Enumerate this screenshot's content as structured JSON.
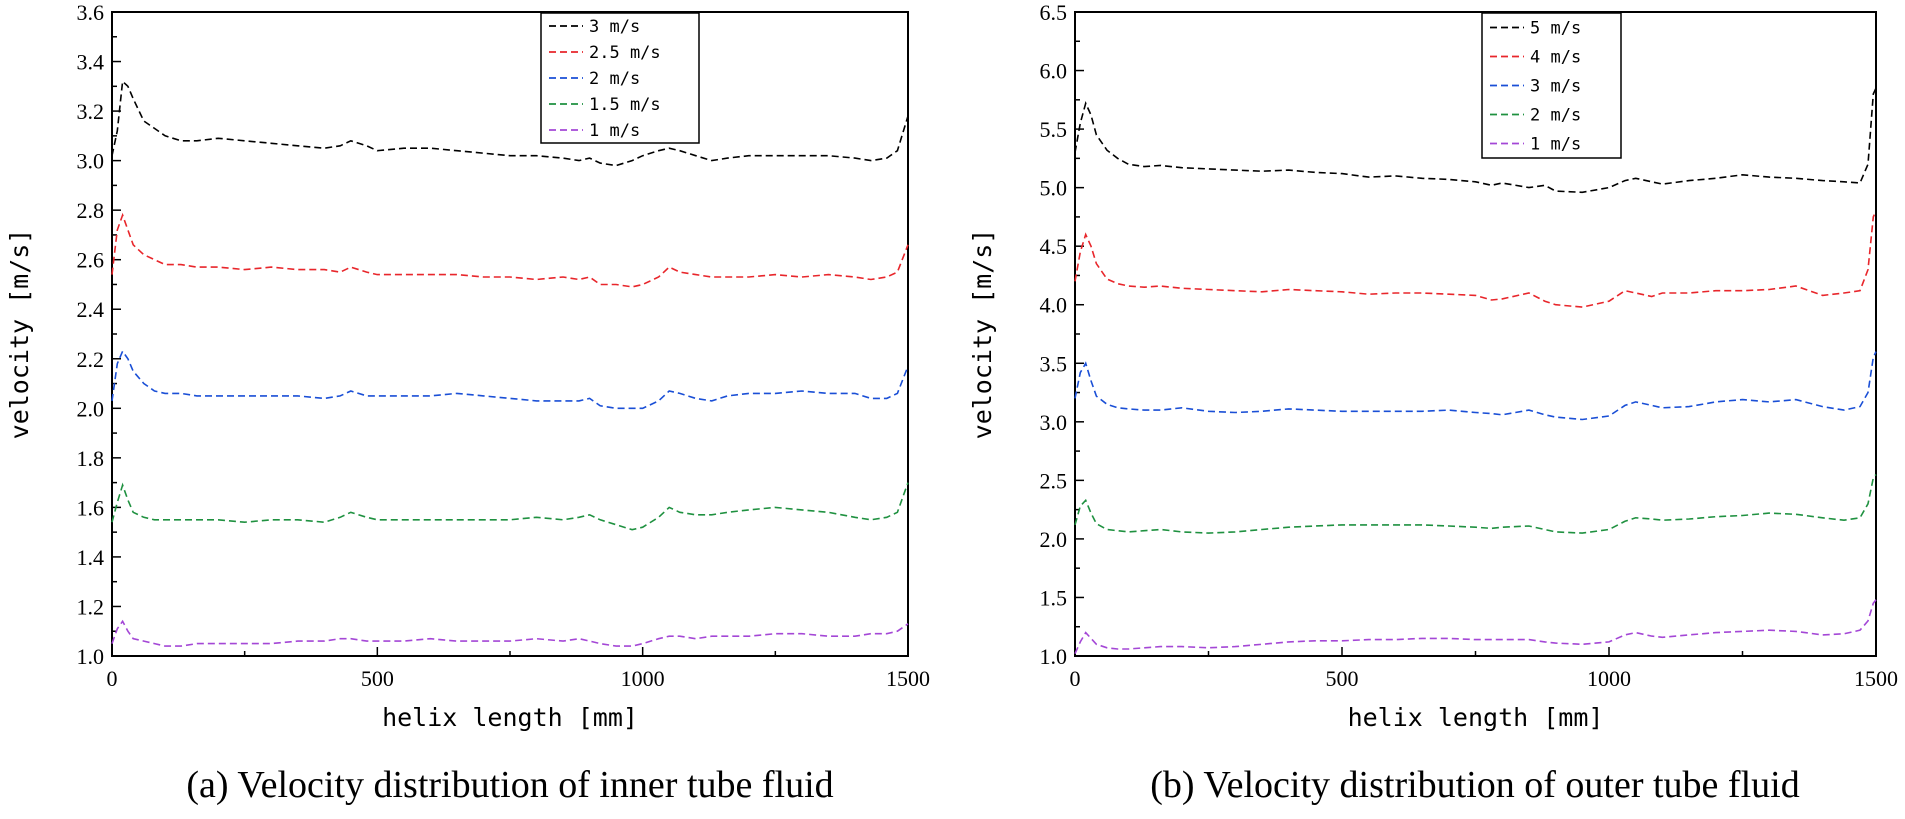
{
  "chart_data": [
    {
      "type": "line",
      "caption": "(a) Velocity distribution of inner tube fluid",
      "xlabel": "helix length [mm]",
      "ylabel": "velocity [m/s]",
      "xlim": [
        0,
        1500
      ],
      "ylim": [
        1.0,
        3.6
      ],
      "xticks": [
        "0",
        "500",
        "1000",
        "1500"
      ],
      "yticks": [
        "1.0",
        "1.2",
        "1.4",
        "1.6",
        "1.8",
        "2.0",
        "2.2",
        "2.4",
        "2.6",
        "2.8",
        "3.0",
        "3.2",
        "3.4",
        "3.6"
      ],
      "legend_position": "top-center",
      "x": [
        0,
        10,
        20,
        30,
        40,
        60,
        80,
        100,
        130,
        160,
        200,
        250,
        300,
        350,
        400,
        430,
        450,
        480,
        500,
        550,
        600,
        650,
        700,
        750,
        800,
        850,
        880,
        900,
        920,
        950,
        980,
        1000,
        1030,
        1050,
        1070,
        1100,
        1130,
        1160,
        1200,
        1250,
        1300,
        1350,
        1400,
        1430,
        1460,
        1480,
        1500
      ],
      "series": [
        {
          "name": "3 m/s",
          "color": "#000000",
          "values": [
            3.02,
            3.12,
            3.32,
            3.3,
            3.25,
            3.16,
            3.13,
            3.1,
            3.08,
            3.08,
            3.09,
            3.08,
            3.07,
            3.06,
            3.05,
            3.06,
            3.08,
            3.06,
            3.04,
            3.05,
            3.05,
            3.04,
            3.03,
            3.02,
            3.02,
            3.01,
            3.0,
            3.01,
            2.99,
            2.98,
            3.0,
            3.02,
            3.04,
            3.05,
            3.04,
            3.02,
            3.0,
            3.01,
            3.02,
            3.02,
            3.02,
            3.02,
            3.01,
            3.0,
            3.01,
            3.04,
            3.18
          ]
        },
        {
          "name": "2.5 m/s",
          "color": "#e8262b",
          "values": [
            2.54,
            2.72,
            2.78,
            2.72,
            2.66,
            2.62,
            2.6,
            2.58,
            2.58,
            2.57,
            2.57,
            2.56,
            2.57,
            2.56,
            2.56,
            2.55,
            2.57,
            2.55,
            2.54,
            2.54,
            2.54,
            2.54,
            2.53,
            2.53,
            2.52,
            2.53,
            2.52,
            2.53,
            2.5,
            2.5,
            2.49,
            2.5,
            2.53,
            2.57,
            2.55,
            2.54,
            2.53,
            2.53,
            2.53,
            2.54,
            2.53,
            2.54,
            2.53,
            2.52,
            2.53,
            2.55,
            2.66
          ]
        },
        {
          "name": "2 m/s",
          "color": "#1a4fd6",
          "values": [
            2.03,
            2.18,
            2.23,
            2.2,
            2.15,
            2.1,
            2.07,
            2.06,
            2.06,
            2.05,
            2.05,
            2.05,
            2.05,
            2.05,
            2.04,
            2.05,
            2.07,
            2.05,
            2.05,
            2.05,
            2.05,
            2.06,
            2.05,
            2.04,
            2.03,
            2.03,
            2.03,
            2.04,
            2.01,
            2.0,
            2.0,
            2.0,
            2.03,
            2.07,
            2.06,
            2.04,
            2.03,
            2.05,
            2.06,
            2.06,
            2.07,
            2.06,
            2.06,
            2.04,
            2.04,
            2.06,
            2.17
          ]
        },
        {
          "name": "1.5 m/s",
          "color": "#1f9140",
          "values": [
            1.54,
            1.62,
            1.69,
            1.63,
            1.58,
            1.56,
            1.55,
            1.55,
            1.55,
            1.55,
            1.55,
            1.54,
            1.55,
            1.55,
            1.54,
            1.56,
            1.58,
            1.56,
            1.55,
            1.55,
            1.55,
            1.55,
            1.55,
            1.55,
            1.56,
            1.55,
            1.56,
            1.57,
            1.55,
            1.53,
            1.51,
            1.52,
            1.56,
            1.6,
            1.58,
            1.57,
            1.57,
            1.58,
            1.59,
            1.6,
            1.59,
            1.58,
            1.56,
            1.55,
            1.56,
            1.58,
            1.7
          ]
        },
        {
          "name": "1 m/s",
          "color": "#a447d6",
          "values": [
            1.05,
            1.11,
            1.14,
            1.1,
            1.07,
            1.06,
            1.05,
            1.04,
            1.04,
            1.05,
            1.05,
            1.05,
            1.05,
            1.06,
            1.06,
            1.07,
            1.07,
            1.06,
            1.06,
            1.06,
            1.07,
            1.06,
            1.06,
            1.06,
            1.07,
            1.06,
            1.07,
            1.06,
            1.05,
            1.04,
            1.04,
            1.05,
            1.07,
            1.08,
            1.08,
            1.07,
            1.08,
            1.08,
            1.08,
            1.09,
            1.09,
            1.08,
            1.08,
            1.09,
            1.09,
            1.1,
            1.13
          ]
        }
      ]
    },
    {
      "type": "line",
      "caption": "(b) Velocity distribution of outer tube fluid",
      "xlabel": "helix length [mm]",
      "ylabel": "velocity [m/s]",
      "xlim": [
        0,
        1500
      ],
      "ylim": [
        1.0,
        6.5
      ],
      "xticks": [
        "0",
        "500",
        "1000",
        "1500"
      ],
      "yticks": [
        "1.0",
        "1.5",
        "2.0",
        "2.5",
        "3.0",
        "3.5",
        "4.0",
        "4.5",
        "5.0",
        "5.5",
        "6.0",
        "6.5"
      ],
      "legend_position": "top-center",
      "x": [
        0,
        10,
        20,
        30,
        40,
        60,
        80,
        100,
        130,
        160,
        200,
        250,
        300,
        350,
        400,
        450,
        500,
        550,
        600,
        650,
        700,
        750,
        780,
        800,
        850,
        880,
        900,
        950,
        1000,
        1030,
        1050,
        1080,
        1100,
        1150,
        1200,
        1250,
        1300,
        1350,
        1400,
        1440,
        1470,
        1485,
        1495,
        1500
      ],
      "series": [
        {
          "name": "5 m/s",
          "color": "#000000",
          "values": [
            5.3,
            5.55,
            5.72,
            5.62,
            5.45,
            5.32,
            5.25,
            5.2,
            5.18,
            5.19,
            5.17,
            5.16,
            5.15,
            5.14,
            5.15,
            5.13,
            5.12,
            5.09,
            5.1,
            5.08,
            5.07,
            5.05,
            5.02,
            5.04,
            5.0,
            5.02,
            4.97,
            4.96,
            5.0,
            5.06,
            5.08,
            5.05,
            5.03,
            5.06,
            5.08,
            5.11,
            5.09,
            5.08,
            5.06,
            5.05,
            5.04,
            5.2,
            5.8,
            5.85
          ]
        },
        {
          "name": "4 m/s",
          "color": "#e8262b",
          "values": [
            4.2,
            4.45,
            4.6,
            4.5,
            4.35,
            4.22,
            4.18,
            4.16,
            4.15,
            4.16,
            4.14,
            4.13,
            4.12,
            4.11,
            4.13,
            4.12,
            4.11,
            4.09,
            4.1,
            4.1,
            4.09,
            4.08,
            4.04,
            4.05,
            4.1,
            4.03,
            4.0,
            3.98,
            4.03,
            4.12,
            4.1,
            4.07,
            4.1,
            4.1,
            4.12,
            4.12,
            4.13,
            4.16,
            4.08,
            4.1,
            4.12,
            4.3,
            4.75,
            4.8
          ]
        },
        {
          "name": "3 m/s",
          "color": "#1a4fd6",
          "values": [
            3.2,
            3.42,
            3.5,
            3.35,
            3.22,
            3.15,
            3.12,
            3.11,
            3.1,
            3.1,
            3.12,
            3.09,
            3.08,
            3.09,
            3.11,
            3.1,
            3.09,
            3.09,
            3.09,
            3.09,
            3.1,
            3.08,
            3.07,
            3.06,
            3.1,
            3.06,
            3.04,
            3.02,
            3.05,
            3.14,
            3.17,
            3.14,
            3.12,
            3.13,
            3.17,
            3.19,
            3.17,
            3.19,
            3.13,
            3.1,
            3.13,
            3.25,
            3.55,
            3.6
          ]
        },
        {
          "name": "2 m/s",
          "color": "#1f9140",
          "values": [
            2.12,
            2.28,
            2.33,
            2.22,
            2.13,
            2.08,
            2.07,
            2.06,
            2.07,
            2.08,
            2.06,
            2.05,
            2.06,
            2.08,
            2.1,
            2.11,
            2.12,
            2.12,
            2.12,
            2.12,
            2.11,
            2.1,
            2.09,
            2.1,
            2.11,
            2.08,
            2.06,
            2.05,
            2.08,
            2.15,
            2.18,
            2.17,
            2.16,
            2.17,
            2.19,
            2.2,
            2.22,
            2.21,
            2.18,
            2.16,
            2.18,
            2.3,
            2.52,
            2.55
          ]
        },
        {
          "name": "1 m/s",
          "color": "#a447d6",
          "values": [
            1.02,
            1.12,
            1.2,
            1.15,
            1.1,
            1.07,
            1.06,
            1.06,
            1.07,
            1.08,
            1.08,
            1.07,
            1.08,
            1.1,
            1.12,
            1.13,
            1.13,
            1.14,
            1.14,
            1.15,
            1.15,
            1.14,
            1.14,
            1.14,
            1.14,
            1.12,
            1.11,
            1.1,
            1.12,
            1.18,
            1.2,
            1.17,
            1.16,
            1.18,
            1.2,
            1.21,
            1.22,
            1.21,
            1.18,
            1.19,
            1.22,
            1.3,
            1.45,
            1.48
          ]
        }
      ]
    }
  ]
}
